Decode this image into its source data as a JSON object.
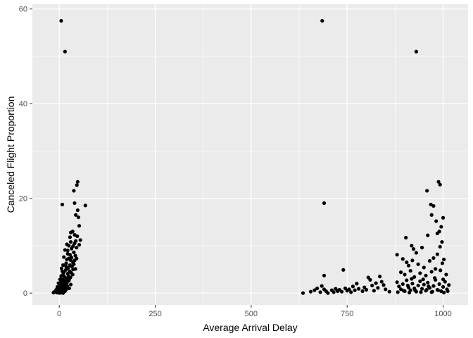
{
  "chart_data": {
    "type": "scatter",
    "title": "",
    "xlabel": "Average Arrival Delay",
    "ylabel": "Canceled Flight Proportion",
    "xlim": [
      -70,
      1065
    ],
    "ylim": [
      -2.5,
      61
    ],
    "x_ticks": [
      0,
      250,
      500,
      750,
      1000
    ],
    "x_tick_labels": [
      "0",
      "250",
      "500",
      "750",
      "1000"
    ],
    "y_ticks": [
      0,
      20,
      40,
      60
    ],
    "y_tick_labels": [
      "0",
      "20",
      "40",
      "60"
    ],
    "grid": true,
    "legend": "none",
    "colors": {
      "panel": "#ebebeb",
      "grid": "#ffffff",
      "point": "#000000",
      "tick_text": "#4d4d4d",
      "tick_mark": "#333333"
    },
    "points": [
      {
        "x": 5,
        "y": 57.5
      },
      {
        "x": 15,
        "y": 51
      },
      {
        "x": 8,
        "y": 18.7
      },
      {
        "x": 68,
        "y": 18.5
      },
      {
        "x": 48,
        "y": 23.5
      },
      {
        "x": 46,
        "y": 22.8
      },
      {
        "x": 38,
        "y": 21.6
      },
      {
        "x": 40,
        "y": 19
      },
      {
        "x": 48,
        "y": 17.5
      },
      {
        "x": 50,
        "y": 16
      },
      {
        "x": 43,
        "y": 16.5
      },
      {
        "x": 52,
        "y": 14.2
      },
      {
        "x": 30,
        "y": 12.8
      },
      {
        "x": 35,
        "y": 13
      },
      {
        "x": 28,
        "y": 11.8
      },
      {
        "x": 47,
        "y": 12
      },
      {
        "x": 20,
        "y": 10.3
      },
      {
        "x": 25,
        "y": 10
      },
      {
        "x": 40,
        "y": 10.5
      },
      {
        "x": 43,
        "y": 11
      },
      {
        "x": 55,
        "y": 11.2
      },
      {
        "x": 52,
        "y": 10.2
      },
      {
        "x": 15,
        "y": 9.1
      },
      {
        "x": 32,
        "y": 9.4
      },
      {
        "x": 36,
        "y": 9.9
      },
      {
        "x": 45,
        "y": 9.6
      },
      {
        "x": 22,
        "y": 8.3
      },
      {
        "x": 28,
        "y": 8.1
      },
      {
        "x": 38,
        "y": 8.6
      },
      {
        "x": 42,
        "y": 7.9
      },
      {
        "x": 12,
        "y": 7.6
      },
      {
        "x": 20,
        "y": 7.1
      },
      {
        "x": 25,
        "y": 7.3
      },
      {
        "x": 30,
        "y": 6.9
      },
      {
        "x": 36,
        "y": 6.4
      },
      {
        "x": 40,
        "y": 6.9
      },
      {
        "x": 45,
        "y": 7.3
      },
      {
        "x": 10,
        "y": 5.9
      },
      {
        "x": 18,
        "y": 5.6
      },
      {
        "x": 23,
        "y": 5.3
      },
      {
        "x": 28,
        "y": 5.9
      },
      {
        "x": 33,
        "y": 5.6
      },
      {
        "x": 38,
        "y": 6.1
      },
      {
        "x": 42,
        "y": 5.1
      },
      {
        "x": 8,
        "y": 4.6
      },
      {
        "x": 12,
        "y": 4.4
      },
      {
        "x": 17,
        "y": 4.9
      },
      {
        "x": 22,
        "y": 4.1
      },
      {
        "x": 27,
        "y": 4.6
      },
      {
        "x": 31,
        "y": 4.3
      },
      {
        "x": 35,
        "y": 3.9
      },
      {
        "x": 5,
        "y": 3.6
      },
      {
        "x": 10,
        "y": 3.9
      },
      {
        "x": 14,
        "y": 3.4
      },
      {
        "x": 19,
        "y": 3.1
      },
      {
        "x": 24,
        "y": 3.6
      },
      {
        "x": 29,
        "y": 3.3
      },
      {
        "x": 2,
        "y": 2.9
      },
      {
        "x": 6,
        "y": 2.6
      },
      {
        "x": 9,
        "y": 2.9
      },
      {
        "x": 12,
        "y": 2.4
      },
      {
        "x": 16,
        "y": 2.7
      },
      {
        "x": 20,
        "y": 2.2
      },
      {
        "x": 25,
        "y": 2.6
      },
      {
        "x": -2,
        "y": 2.1
      },
      {
        "x": 1,
        "y": 1.9
      },
      {
        "x": 4,
        "y": 2.3
      },
      {
        "x": 7,
        "y": 1.7
      },
      {
        "x": 10,
        "y": 2
      },
      {
        "x": 13,
        "y": 1.6
      },
      {
        "x": 17,
        "y": 1.9
      },
      {
        "x": 21,
        "y": 1.5
      },
      {
        "x": -5,
        "y": 1.3
      },
      {
        "x": -1,
        "y": 1.1
      },
      {
        "x": 2,
        "y": 1.4
      },
      {
        "x": 5,
        "y": 1
      },
      {
        "x": 8,
        "y": 1.3
      },
      {
        "x": 11,
        "y": 0.9
      },
      {
        "x": 14,
        "y": 1.2
      },
      {
        "x": 18,
        "y": 0.8
      },
      {
        "x": -8,
        "y": 0.7
      },
      {
        "x": -4,
        "y": 0.5
      },
      {
        "x": 0,
        "y": 0.8
      },
      {
        "x": 3,
        "y": 0.4
      },
      {
        "x": 6,
        "y": 0.7
      },
      {
        "x": 9,
        "y": 0.3
      },
      {
        "x": 12,
        "y": 0.6
      },
      {
        "x": 15,
        "y": 0.4
      },
      {
        "x": -12,
        "y": 0.3
      },
      {
        "x": -6,
        "y": 0.1
      },
      {
        "x": -2,
        "y": 0.2
      },
      {
        "x": 1,
        "y": 0
      },
      {
        "x": 4,
        "y": 0.2
      },
      {
        "x": 7,
        "y": 0.1
      },
      {
        "x": 10,
        "y": 0
      },
      {
        "x": -15,
        "y": 0.1
      },
      {
        "x": 0,
        "y": 0.5
      },
      {
        "x": 3,
        "y": 1.5
      },
      {
        "x": 26,
        "y": 3
      },
      {
        "x": 32,
        "y": 7.5
      },
      {
        "x": 36,
        "y": 5
      },
      {
        "x": 18,
        "y": 6.3
      },
      {
        "x": 22,
        "y": 9
      },
      {
        "x": 30,
        "y": 10.8
      },
      {
        "x": 40,
        "y": 12.3
      },
      {
        "x": 26,
        "y": 1
      },
      {
        "x": 30,
        "y": 1.8
      },
      {
        "x": 6,
        "y": 5.2
      },
      {
        "x": 685,
        "y": 57.5
      },
      {
        "x": 690,
        "y": 19
      },
      {
        "x": 690,
        "y": 3.7
      },
      {
        "x": 635,
        "y": 0
      },
      {
        "x": 655,
        "y": 0.3
      },
      {
        "x": 665,
        "y": 0.6
      },
      {
        "x": 672,
        "y": 1
      },
      {
        "x": 680,
        "y": 0.2
      },
      {
        "x": 684,
        "y": 1.5
      },
      {
        "x": 690,
        "y": 0.8
      },
      {
        "x": 695,
        "y": 0.4
      },
      {
        "x": 700,
        "y": 0
      },
      {
        "x": 710,
        "y": 0.6
      },
      {
        "x": 715,
        "y": 0.2
      },
      {
        "x": 720,
        "y": 0.9
      },
      {
        "x": 725,
        "y": 0.4
      },
      {
        "x": 730,
        "y": 0.7
      },
      {
        "x": 736,
        "y": 0.3
      },
      {
        "x": 740,
        "y": 4.9
      },
      {
        "x": 745,
        "y": 1
      },
      {
        "x": 750,
        "y": 0.5
      },
      {
        "x": 755,
        "y": 0.8
      },
      {
        "x": 760,
        "y": 0.2
      },
      {
        "x": 765,
        "y": 1.4
      },
      {
        "x": 770,
        "y": 0.6
      },
      {
        "x": 775,
        "y": 2
      },
      {
        "x": 780,
        "y": 0.9
      },
      {
        "x": 790,
        "y": 0.4
      },
      {
        "x": 795,
        "y": 1.2
      },
      {
        "x": 800,
        "y": 0.7
      },
      {
        "x": 805,
        "y": 3.3
      },
      {
        "x": 810,
        "y": 2.8
      },
      {
        "x": 815,
        "y": 1.6
      },
      {
        "x": 820,
        "y": 0.5
      },
      {
        "x": 825,
        "y": 2.1
      },
      {
        "x": 830,
        "y": 1.1
      },
      {
        "x": 835,
        "y": 3.5
      },
      {
        "x": 840,
        "y": 2.4
      },
      {
        "x": 845,
        "y": 1.7
      },
      {
        "x": 850,
        "y": 0.8
      },
      {
        "x": 860,
        "y": 0.3
      },
      {
        "x": 930,
        "y": 51
      },
      {
        "x": 958,
        "y": 21.6
      },
      {
        "x": 988,
        "y": 23.5
      },
      {
        "x": 992,
        "y": 22.9
      },
      {
        "x": 968,
        "y": 18.7
      },
      {
        "x": 975,
        "y": 18.4
      },
      {
        "x": 970,
        "y": 16.5
      },
      {
        "x": 982,
        "y": 15.2
      },
      {
        "x": 1000,
        "y": 15.9
      },
      {
        "x": 995,
        "y": 14
      },
      {
        "x": 990,
        "y": 13
      },
      {
        "x": 960,
        "y": 12.2
      },
      {
        "x": 985,
        "y": 12.6
      },
      {
        "x": 903,
        "y": 11.7
      },
      {
        "x": 918,
        "y": 10
      },
      {
        "x": 923,
        "y": 9.3
      },
      {
        "x": 930,
        "y": 8.5
      },
      {
        "x": 945,
        "y": 9.6
      },
      {
        "x": 997,
        "y": 10.8
      },
      {
        "x": 992,
        "y": 9.8
      },
      {
        "x": 880,
        "y": 8.1
      },
      {
        "x": 895,
        "y": 7.2
      },
      {
        "x": 905,
        "y": 6.5
      },
      {
        "x": 910,
        "y": 5.8
      },
      {
        "x": 920,
        "y": 6.9
      },
      {
        "x": 935,
        "y": 6.1
      },
      {
        "x": 950,
        "y": 5.4
      },
      {
        "x": 965,
        "y": 6.8
      },
      {
        "x": 975,
        "y": 7.4
      },
      {
        "x": 985,
        "y": 8.2
      },
      {
        "x": 998,
        "y": 6.3
      },
      {
        "x": 1002,
        "y": 7.1
      },
      {
        "x": 890,
        "y": 4.4
      },
      {
        "x": 900,
        "y": 3.9
      },
      {
        "x": 915,
        "y": 4.7
      },
      {
        "x": 925,
        "y": 3.4
      },
      {
        "x": 940,
        "y": 4.2
      },
      {
        "x": 955,
        "y": 3.7
      },
      {
        "x": 970,
        "y": 4.5
      },
      {
        "x": 980,
        "y": 5.1
      },
      {
        "x": 993,
        "y": 4.8
      },
      {
        "x": 1008,
        "y": 3.9
      },
      {
        "x": 880,
        "y": 2.3
      },
      {
        "x": 885,
        "y": 1.4
      },
      {
        "x": 890,
        "y": 0.8
      },
      {
        "x": 895,
        "y": 1.9
      },
      {
        "x": 900,
        "y": 0.4
      },
      {
        "x": 905,
        "y": 2.7
      },
      {
        "x": 910,
        "y": 1.2
      },
      {
        "x": 915,
        "y": 0.6
      },
      {
        "x": 920,
        "y": 2
      },
      {
        "x": 925,
        "y": 1
      },
      {
        "x": 930,
        "y": 0.3
      },
      {
        "x": 935,
        "y": 1.6
      },
      {
        "x": 940,
        "y": 2.5
      },
      {
        "x": 945,
        "y": 0.9
      },
      {
        "x": 950,
        "y": 1.8
      },
      {
        "x": 955,
        "y": 0.5
      },
      {
        "x": 960,
        "y": 2.2
      },
      {
        "x": 965,
        "y": 1.1
      },
      {
        "x": 970,
        "y": 0.2
      },
      {
        "x": 975,
        "y": 1.5
      },
      {
        "x": 980,
        "y": 2.8
      },
      {
        "x": 985,
        "y": 0.7
      },
      {
        "x": 990,
        "y": 1.9
      },
      {
        "x": 995,
        "y": 0.4
      },
      {
        "x": 1000,
        "y": 1.3
      },
      {
        "x": 1005,
        "y": 2.4
      },
      {
        "x": 1010,
        "y": 0.8
      },
      {
        "x": 1015,
        "y": 1.7
      },
      {
        "x": 882,
        "y": 0.2
      },
      {
        "x": 897,
        "y": 0.5
      },
      {
        "x": 912,
        "y": 0.1
      },
      {
        "x": 927,
        "y": 0.6
      },
      {
        "x": 942,
        "y": 0.2
      },
      {
        "x": 957,
        "y": 0.7
      },
      {
        "x": 972,
        "y": 0.3
      },
      {
        "x": 987,
        "y": 0.6
      },
      {
        "x": 1002,
        "y": 0.1
      },
      {
        "x": 1012,
        "y": 0.4
      },
      {
        "x": 918,
        "y": 3
      },
      {
        "x": 948,
        "y": 2.9
      },
      {
        "x": 978,
        "y": 3.2
      },
      {
        "x": 1000,
        "y": 2.9
      },
      {
        "x": 962,
        "y": 1.4
      },
      {
        "x": 908,
        "y": 1.6
      }
    ]
  }
}
